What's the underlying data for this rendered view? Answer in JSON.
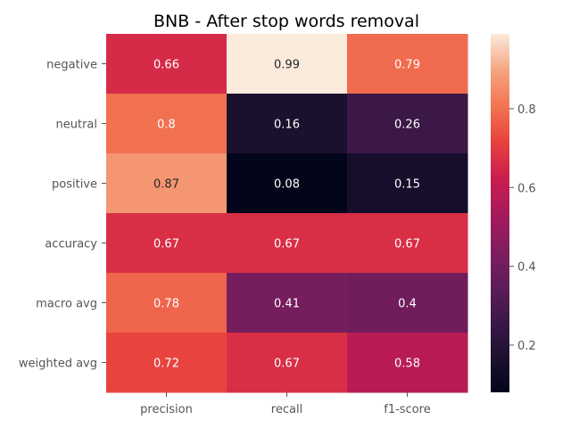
{
  "chart_data": {
    "type": "heatmap",
    "title": "BNB - After stop words removal",
    "rows": [
      "negative",
      "neutral",
      "positive",
      "accuracy",
      "macro avg",
      "weighted avg"
    ],
    "columns": [
      "precision",
      "recall",
      "f1-score"
    ],
    "values": [
      [
        0.66,
        0.99,
        0.79
      ],
      [
        0.8,
        0.16,
        0.26
      ],
      [
        0.87,
        0.08,
        0.15
      ],
      [
        0.67,
        0.67,
        0.67
      ],
      [
        0.78,
        0.41,
        0.4
      ],
      [
        0.72,
        0.67,
        0.58
      ]
    ],
    "value_range": [
      0.08,
      0.99
    ],
    "colorbar": {
      "ticks": [
        0.2,
        0.4,
        0.6,
        0.8
      ],
      "tick_labels": [
        "0.2",
        "0.4",
        "0.6",
        "0.8"
      ]
    },
    "colormap": "rocket",
    "annotations": true,
    "grid": false
  }
}
